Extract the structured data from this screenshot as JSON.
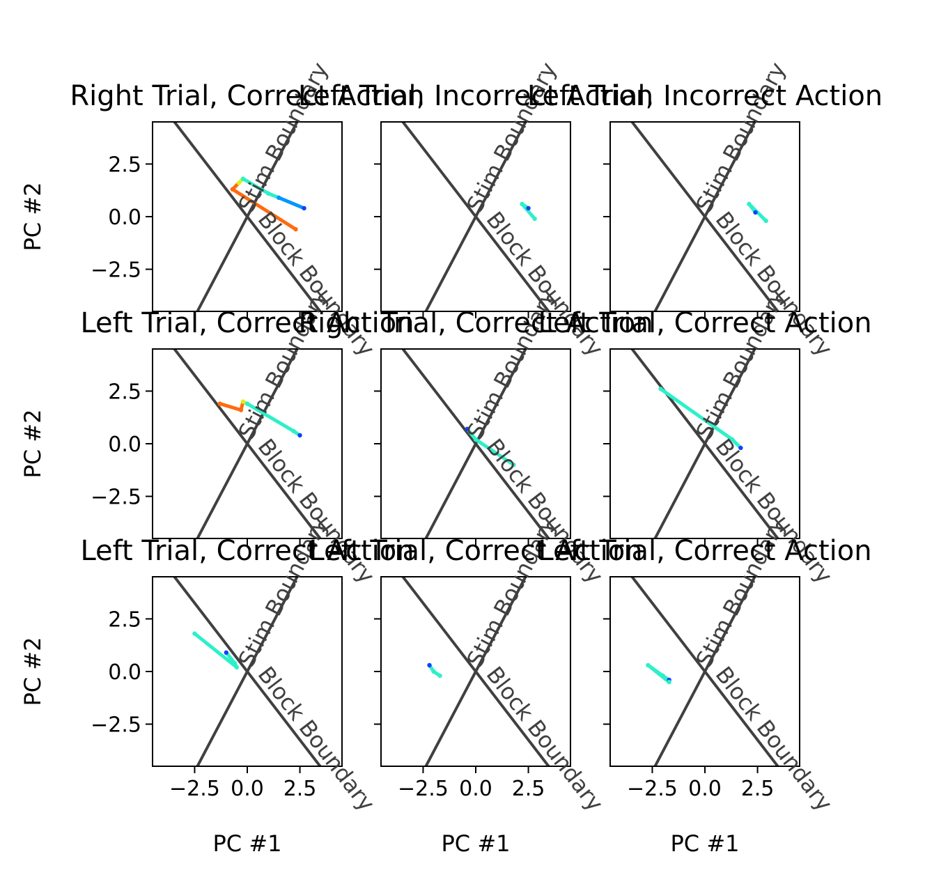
{
  "chart_data": {
    "type": "line",
    "colormap": "jet",
    "boundary_color": "#404040",
    "xlim": [
      -4.5,
      4.5
    ],
    "ylim": [
      -4.5,
      4.5
    ],
    "xticks": [
      -2.5,
      0.0,
      2.5
    ],
    "yticks": [
      -2.5,
      0.0,
      2.5
    ],
    "xtick_labels": [
      "−2.5",
      "0.0",
      "2.5"
    ],
    "ytick_labels": [
      "−2.5",
      "0.0",
      "2.5"
    ],
    "xlabel": "PC #1",
    "ylabel": "PC #2",
    "grid": false,
    "boundaries": [
      {
        "label": "Stim Boundary",
        "slope": 1.9
      },
      {
        "label": "Block Boundary",
        "slope": -1.3
      }
    ],
    "panels": [
      {
        "title": "Right Trial, Correct Action",
        "trajectory": [
          {
            "x": 2.7,
            "y": 0.4,
            "color": "#1240ff"
          },
          {
            "x": 1.5,
            "y": 0.9,
            "color": "#0096ff"
          },
          {
            "x": 1.0,
            "y": 1.1,
            "color": "#2cf0c8"
          },
          {
            "x": -0.2,
            "y": 1.8,
            "color": "#2cf0c8"
          },
          {
            "x": -0.4,
            "y": 1.6,
            "color": "#d8f020"
          },
          {
            "x": -0.7,
            "y": 1.3,
            "color": "#ff6a10"
          },
          {
            "x": 2.3,
            "y": -0.6,
            "color": "#ff6a10"
          }
        ]
      },
      {
        "title": "Left Trial, Incorrect Action",
        "trajectory": [
          {
            "x": 2.5,
            "y": 0.4,
            "color": "#1240ff"
          },
          {
            "x": 2.2,
            "y": 0.6,
            "color": "#2cf0c8"
          },
          {
            "x": 2.8,
            "y": -0.1,
            "color": "#2cf0c8"
          }
        ]
      },
      {
        "title": "Left Trial, Incorrect Action",
        "trajectory": [
          {
            "x": 2.4,
            "y": 0.2,
            "color": "#1240ff"
          },
          {
            "x": 2.1,
            "y": 0.6,
            "color": "#2cf0c8"
          },
          {
            "x": 2.9,
            "y": -0.2,
            "color": "#2cf0c8"
          }
        ]
      },
      {
        "title": "Left Trial, Correct Action",
        "trajectory": [
          {
            "x": 2.5,
            "y": 0.4,
            "color": "#1240ff"
          },
          {
            "x": 2.2,
            "y": 0.6,
            "color": "#2cf0c8"
          },
          {
            "x": 0.0,
            "y": 1.9,
            "color": "#2cf0c8"
          },
          {
            "x": -0.2,
            "y": 2.0,
            "color": "#d8f020"
          },
          {
            "x": -0.3,
            "y": 1.6,
            "color": "#ff6a10"
          },
          {
            "x": -1.3,
            "y": 1.9,
            "color": "#ff6a10"
          }
        ]
      },
      {
        "title": "Right Trial, Correct Action",
        "trajectory": [
          {
            "x": -0.4,
            "y": 0.7,
            "color": "#1240ff"
          },
          {
            "x": 0.0,
            "y": 0.2,
            "color": "#2cf0c8"
          },
          {
            "x": 1.8,
            "y": -1.0,
            "color": "#2cf0c8"
          }
        ]
      },
      {
        "title": "Left Trial, Correct Action",
        "trajectory": [
          {
            "x": 1.7,
            "y": -0.2,
            "color": "#1240ff"
          },
          {
            "x": 1.3,
            "y": 0.2,
            "color": "#2cf0c8"
          },
          {
            "x": -2.1,
            "y": 2.6,
            "color": "#2cf0c8"
          }
        ]
      },
      {
        "title": "Left Trial, Correct Action",
        "trajectory": [
          {
            "x": -1.0,
            "y": 0.9,
            "color": "#1240ff"
          },
          {
            "x": -0.6,
            "y": 0.4,
            "color": "#2cf0c8"
          },
          {
            "x": -0.5,
            "y": 0.2,
            "color": "#2cf0c8"
          },
          {
            "x": -2.5,
            "y": 1.8,
            "color": "#2cf0c8"
          }
        ]
      },
      {
        "title": "Left Trial, Correct Action",
        "trajectory": [
          {
            "x": -2.2,
            "y": 0.3,
            "color": "#1240ff"
          },
          {
            "x": -2.0,
            "y": 0.0,
            "color": "#2cf0c8"
          },
          {
            "x": -1.7,
            "y": -0.2,
            "color": "#2cf0c8"
          }
        ]
      },
      {
        "title": "Left Trial, Correct Action",
        "trajectory": [
          {
            "x": -1.7,
            "y": -0.4,
            "color": "#1240ff"
          },
          {
            "x": -2.0,
            "y": -0.2,
            "color": "#2cf0c8"
          },
          {
            "x": -2.7,
            "y": 0.3,
            "color": "#2cf0c8"
          },
          {
            "x": -1.7,
            "y": -0.5,
            "color": "#2cf0c8"
          }
        ]
      }
    ]
  }
}
